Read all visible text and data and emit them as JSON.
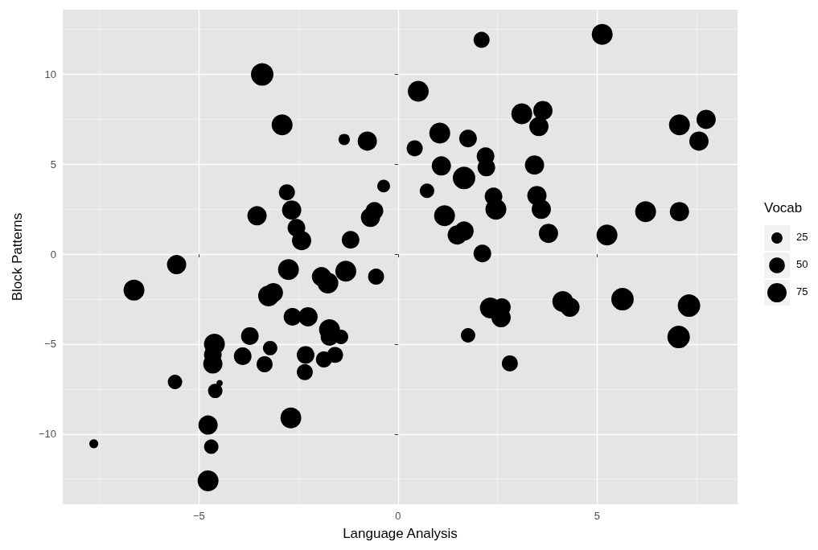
{
  "chart_data": {
    "type": "bubble",
    "xlabel": "Language Analysis",
    "ylabel": "Block Patterns",
    "legend_title": "Vocab",
    "grid": true,
    "marker": "circle",
    "xlim": [
      -8.42,
      8.53
    ],
    "xticks": [
      -5,
      0,
      5
    ],
    "ylim": [
      -13.9,
      13.6
    ],
    "yticks": [
      -10,
      -5,
      0,
      5,
      10
    ],
    "size_legend": [
      25,
      50,
      75
    ],
    "series": [
      {
        "color": "#000000",
        "x": [
          -7.64,
          -6.63,
          -5.56,
          -5.6,
          -4.77,
          -4.77,
          -4.69,
          -4.61,
          -4.65,
          -4.59,
          -4.65,
          -4.48,
          -3.9,
          -3.72,
          -3.35,
          -3.21,
          -3.25,
          -3.13,
          -2.75,
          -2.69,
          -2.65,
          -2.34,
          -2.32,
          -2.26,
          -1.86,
          -1.72,
          -1.72,
          -1.58,
          -1.43,
          -1.92,
          -1.76,
          -1.31,
          -1.19,
          -0.55,
          -3.41,
          -2.91,
          -1.35,
          -0.77,
          -2.79,
          -2.67,
          -3.54,
          -2.55,
          -2.42,
          -0.59,
          -0.69,
          -0.36,
          2.1,
          5.13,
          0.51,
          0.42,
          1.05,
          1.76,
          1.09,
          0.73,
          1.66,
          2.2,
          2.22,
          2.4,
          2.46,
          1.17,
          1.49,
          1.66,
          2.12,
          3.11,
          3.64,
          3.54,
          3.43,
          3.49,
          3.6,
          3.78,
          6.22,
          7.07,
          7.07,
          7.74,
          7.56,
          5.25,
          2.32,
          2.61,
          2.59,
          1.76,
          2.81,
          4.14,
          4.32,
          5.64,
          7.31,
          7.05
        ],
        "values": [
          -10.54,
          -2.0,
          -0.58,
          -7.1,
          -12.6,
          -9.5,
          -10.7,
          -5.0,
          -6.1,
          -7.6,
          -5.58,
          -7.17,
          -5.67,
          -4.55,
          -6.12,
          -5.22,
          -2.32,
          -2.14,
          -0.85,
          -9.1,
          -3.48,
          -6.56,
          -5.6,
          -3.48,
          -5.85,
          -4.2,
          -4.6,
          -5.6,
          -4.6,
          -1.25,
          -1.6,
          -0.94,
          0.8,
          -1.25,
          10.0,
          7.19,
          6.38,
          6.29,
          3.44,
          2.46,
          2.14,
          1.47,
          0.76,
          2.41,
          2.05,
          3.79,
          11.92,
          12.23,
          9.06,
          5.89,
          6.74,
          6.43,
          4.91,
          3.53,
          4.24,
          5.45,
          4.82,
          3.21,
          2.5,
          2.14,
          1.07,
          1.29,
          0.04,
          7.81,
          7.99,
          7.1,
          4.96,
          3.26,
          2.5,
          1.16,
          2.37,
          2.37,
          7.19,
          7.5,
          6.29,
          1.07,
          -2.99,
          -2.95,
          -3.53,
          -4.51,
          -6.07,
          -2.63,
          -2.95,
          -2.5,
          -2.86,
          -4.6
        ],
        "sizes": [
          16,
          88,
          75,
          42,
          88,
          75,
          42,
          88,
          75,
          42,
          63,
          8,
          63,
          63,
          52,
          42,
          88,
          75,
          88,
          88,
          63,
          52,
          63,
          75,
          52,
          88,
          63,
          52,
          42,
          75,
          88,
          88,
          63,
          52,
          102,
          88,
          26,
          75,
          52,
          75,
          75,
          63,
          75,
          63,
          75,
          33,
          52,
          88,
          88,
          52,
          88,
          63,
          75,
          42,
          102,
          63,
          63,
          63,
          88,
          88,
          75,
          75,
          63,
          88,
          75,
          75,
          75,
          75,
          75,
          75,
          88,
          75,
          88,
          75,
          75,
          88,
          88,
          63,
          75,
          42,
          52,
          88,
          75,
          102,
          102,
          102
        ]
      }
    ]
  }
}
